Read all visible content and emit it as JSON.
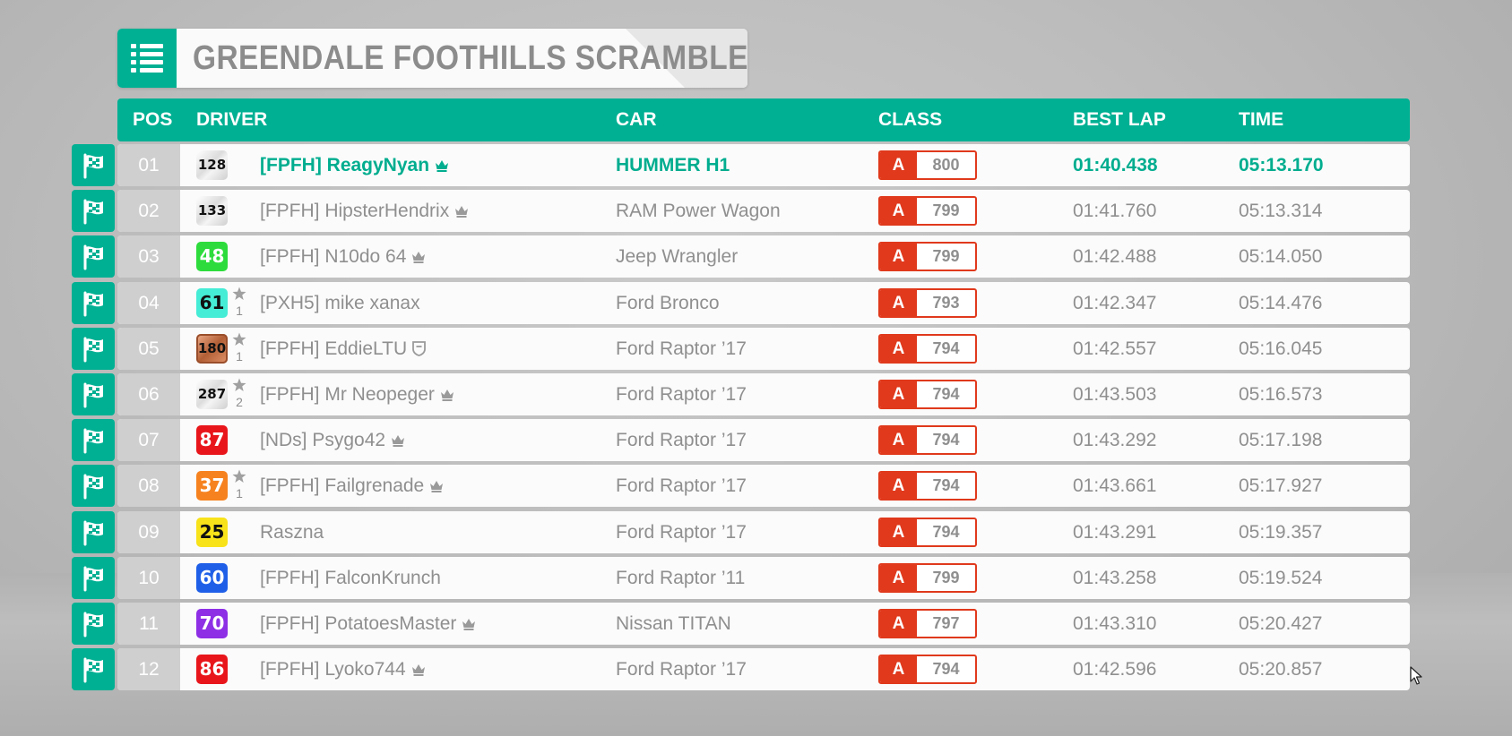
{
  "event": {
    "title": "GREENDALE FOOTHILLS SCRAMBLE",
    "icon": "list-icon"
  },
  "colors": {
    "accent": "#00b093",
    "class_a": "#e0391c",
    "row_bg": "#fbfbfb",
    "pos_bg": "#cfcfcf",
    "text_muted": "#8f8f8f"
  },
  "columns": {
    "pos": "POS",
    "driver": "DRIVER",
    "car": "CAR",
    "class": "CLASS",
    "best_lap": "BEST LAP",
    "time": "TIME"
  },
  "rows": [
    {
      "pos": "01",
      "level": "128",
      "badge_style": "silver",
      "driver": "[FPFH] ReagyNyan",
      "tag_icon": "crown-icon",
      "car": "HUMMER H1",
      "class": "A",
      "pi": "800",
      "best_lap": "01:40.438",
      "time": "05:13.170",
      "highlight": true
    },
    {
      "pos": "02",
      "level": "133",
      "badge_style": "silver",
      "driver": "[FPFH] HipsterHendrix",
      "tag_icon": "crown-icon",
      "car": "RAM Power Wagon",
      "class": "A",
      "pi": "799",
      "best_lap": "01:41.760",
      "time": "05:13.314"
    },
    {
      "pos": "03",
      "level": "48",
      "badge_color": "#2ddc3c",
      "driver": "[FPFH] N10do 64",
      "tag_icon": "crown-icon",
      "car": "Jeep Wrangler",
      "class": "A",
      "pi": "799",
      "best_lap": "01:42.488",
      "time": "05:14.050"
    },
    {
      "pos": "04",
      "level": "61",
      "badge_color": "#45ecd6",
      "badge_text_dark": true,
      "stars": "1",
      "driver": "[PXH5] mike xanax",
      "car": "Ford Bronco",
      "class": "A",
      "pi": "793",
      "best_lap": "01:42.347",
      "time": "05:14.476"
    },
    {
      "pos": "05",
      "level": "180",
      "badge_style": "bronze",
      "stars": "1",
      "driver": "[FPFH] EddieLTU",
      "tag_icon": "shield-icon",
      "car": "Ford Raptor ’17",
      "class": "A",
      "pi": "794",
      "best_lap": "01:42.557",
      "time": "05:16.045"
    },
    {
      "pos": "06",
      "level": "287",
      "badge_style": "silver",
      "stars": "2",
      "driver": "[FPFH] Mr Neopeger",
      "tag_icon": "crown-icon",
      "car": "Ford Raptor ’17",
      "class": "A",
      "pi": "794",
      "best_lap": "01:43.503",
      "time": "05:16.573"
    },
    {
      "pos": "07",
      "level": "87",
      "badge_color": "#e8161b",
      "driver": "[NDs] Psygo42",
      "tag_icon": "crown-icon",
      "car": "Ford Raptor ’17",
      "class": "A",
      "pi": "794",
      "best_lap": "01:43.292",
      "time": "05:17.198"
    },
    {
      "pos": "08",
      "level": "37",
      "badge_color": "#f6821f",
      "stars": "1",
      "driver": "[FPFH] Failgrenade",
      "tag_icon": "crown-icon",
      "car": "Ford Raptor ’17",
      "class": "A",
      "pi": "794",
      "best_lap": "01:43.661",
      "time": "05:17.927"
    },
    {
      "pos": "09",
      "level": "25",
      "badge_color": "#f8e21a",
      "badge_text_dark": true,
      "driver": "Raszna",
      "car": "Ford Raptor ’17",
      "class": "A",
      "pi": "794",
      "best_lap": "01:43.291",
      "time": "05:19.357"
    },
    {
      "pos": "10",
      "level": "60",
      "badge_color": "#1f5fe8",
      "driver": "[FPFH] FalconKrunch",
      "car": "Ford Raptor ’11",
      "class": "A",
      "pi": "799",
      "best_lap": "01:43.258",
      "time": "05:19.524"
    },
    {
      "pos": "11",
      "level": "70",
      "badge_color": "#8e2fe6",
      "driver": "[FPFH] PotatoesMaster",
      "tag_icon": "crown-icon",
      "car": "Nissan TITAN",
      "class": "A",
      "pi": "797",
      "best_lap": "01:43.310",
      "time": "05:20.427"
    },
    {
      "pos": "12",
      "level": "86",
      "badge_color": "#e8161b",
      "driver": "[FPFH] Lyoko744",
      "tag_icon": "crown-icon",
      "car": "Ford Raptor ’17",
      "class": "A",
      "pi": "794",
      "best_lap": "01:42.596",
      "time": "05:20.857"
    }
  ]
}
